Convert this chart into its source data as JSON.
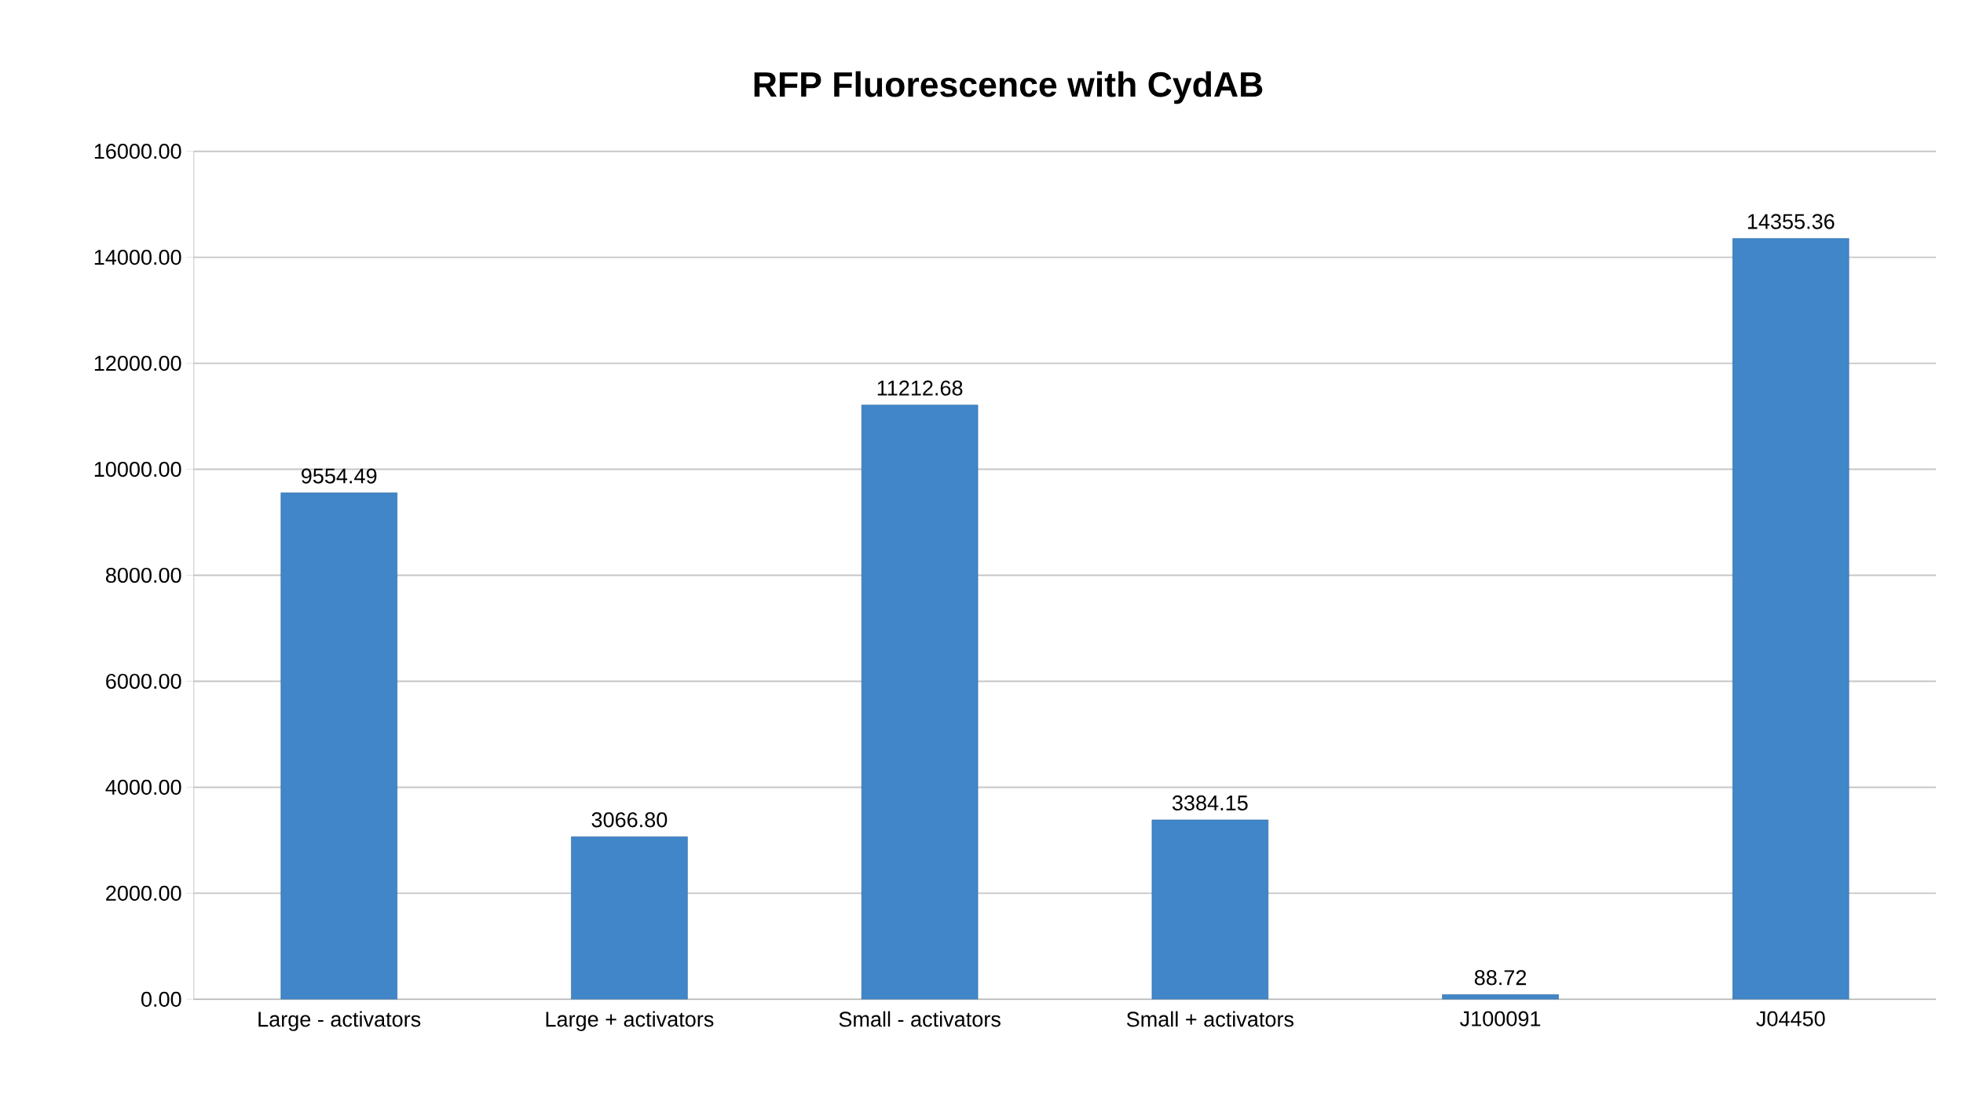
{
  "chart_data": {
    "type": "bar",
    "title": "RFP Fluorescence with CydAB",
    "categories": [
      "Large - activators",
      "Large + activators",
      "Small - activators",
      "Small + activators",
      "J100091",
      "J04450"
    ],
    "values": [
      9554.49,
      3066.8,
      11212.68,
      3384.15,
      88.72,
      14355.36
    ],
    "color": "#4086c9",
    "ylim": [
      0,
      16000
    ],
    "yticks": [
      {
        "value": 0,
        "label": "0.00"
      },
      {
        "value": 2000,
        "label": "2000.00"
      },
      {
        "value": 4000,
        "label": "4000.00"
      },
      {
        "value": 6000,
        "label": "6000.00"
      },
      {
        "value": 8000,
        "label": "8000.00"
      },
      {
        "value": 10000,
        "label": "10000.00"
      },
      {
        "value": 12000,
        "label": "12000.00"
      },
      {
        "value": 14000,
        "label": "14000.00"
      },
      {
        "value": 16000,
        "label": "16000.00"
      }
    ],
    "value_labels": [
      "9554.49",
      "3066.80",
      "11212.68",
      "3384.15",
      "88.72",
      "14355.36"
    ],
    "grid": "y"
  }
}
